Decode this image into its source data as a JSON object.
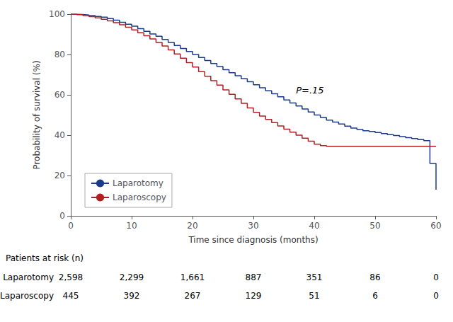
{
  "chart_data": {
    "type": "step",
    "xlabel": "Time since diagnosis (months)",
    "ylabel": "Probability of survival (%)",
    "x": [
      0,
      1,
      2,
      3,
      4,
      5,
      6,
      7,
      8,
      9,
      10,
      11,
      12,
      13,
      14,
      15,
      16,
      17,
      18,
      19,
      20,
      21,
      22,
      23,
      24,
      25,
      26,
      27,
      28,
      29,
      30,
      31,
      32,
      33,
      34,
      35,
      36,
      37,
      38,
      39,
      40,
      41,
      42,
      43,
      44,
      45,
      46,
      47,
      48,
      49,
      50,
      51,
      52,
      53,
      54,
      55,
      56,
      57,
      58,
      59,
      60
    ],
    "series": [
      {
        "name": "Laparotomy",
        "color": "#1a3a8a",
        "values": [
          100,
          99.8,
          99.6,
          99.3,
          98.9,
          98.5,
          97.8,
          97.0,
          96.0,
          95.0,
          94.0,
          92.8,
          91.5,
          90.2,
          89.0,
          87.5,
          86.0,
          84.5,
          83.0,
          81.5,
          80.0,
          78.5,
          77.0,
          75.5,
          74.0,
          72.5,
          71.0,
          69.5,
          68.0,
          66.5,
          65.0,
          63.5,
          62.0,
          60.5,
          59.0,
          57.5,
          56.0,
          54.5,
          53.0,
          51.5,
          50.0,
          48.8,
          47.5,
          46.5,
          45.5,
          44.5,
          43.5,
          42.8,
          42.2,
          41.8,
          41.3,
          40.8,
          40.3,
          39.8,
          39.3,
          38.8,
          38.3,
          37.8,
          37.3,
          26.0,
          13.0
        ]
      },
      {
        "name": "Laparoscopy",
        "color": "#b02020",
        "values": [
          100,
          99.7,
          99.3,
          98.8,
          98.2,
          97.5,
          96.7,
          95.8,
          94.7,
          93.5,
          92.2,
          90.8,
          89.3,
          87.7,
          86.0,
          84.2,
          82.3,
          80.3,
          78.2,
          76.0,
          73.8,
          71.5,
          69.2,
          67.0,
          64.8,
          62.5,
          60.3,
          58.0,
          55.8,
          53.5,
          51.3,
          49.5,
          47.8,
          46.2,
          44.6,
          43.0,
          41.5,
          40.0,
          38.5,
          37.0,
          35.5,
          34.8,
          34.5,
          34.5,
          34.5,
          34.5,
          34.5,
          34.5,
          34.5,
          34.5,
          34.5,
          34.5,
          34.5,
          34.5,
          34.5,
          34.5,
          34.5,
          34.5,
          34.5,
          34.5,
          34.5
        ]
      }
    ],
    "xlim": [
      0,
      60
    ],
    "ylim": [
      0,
      100
    ],
    "xticks": [
      0,
      10,
      20,
      30,
      40,
      50,
      60
    ],
    "yticks": [
      0,
      20,
      40,
      60,
      80,
      100
    ],
    "grid": false,
    "legend": "lower left",
    "annotations": [
      {
        "text": "P=.15",
        "x": 37,
        "y": 60
      }
    ],
    "risk_table": {
      "title": "Patients at risk (n)",
      "x": [
        0,
        10,
        20,
        30,
        40,
        50,
        60
      ],
      "rows": [
        {
          "name": "Laparotomy",
          "values": [
            "2,598",
            "2,299",
            "1,661",
            "887",
            "351",
            "86",
            "0"
          ]
        },
        {
          "name": "Laparoscopy",
          "values": [
            "445",
            "392",
            "267",
            "129",
            "51",
            "6",
            "0"
          ]
        }
      ]
    }
  }
}
